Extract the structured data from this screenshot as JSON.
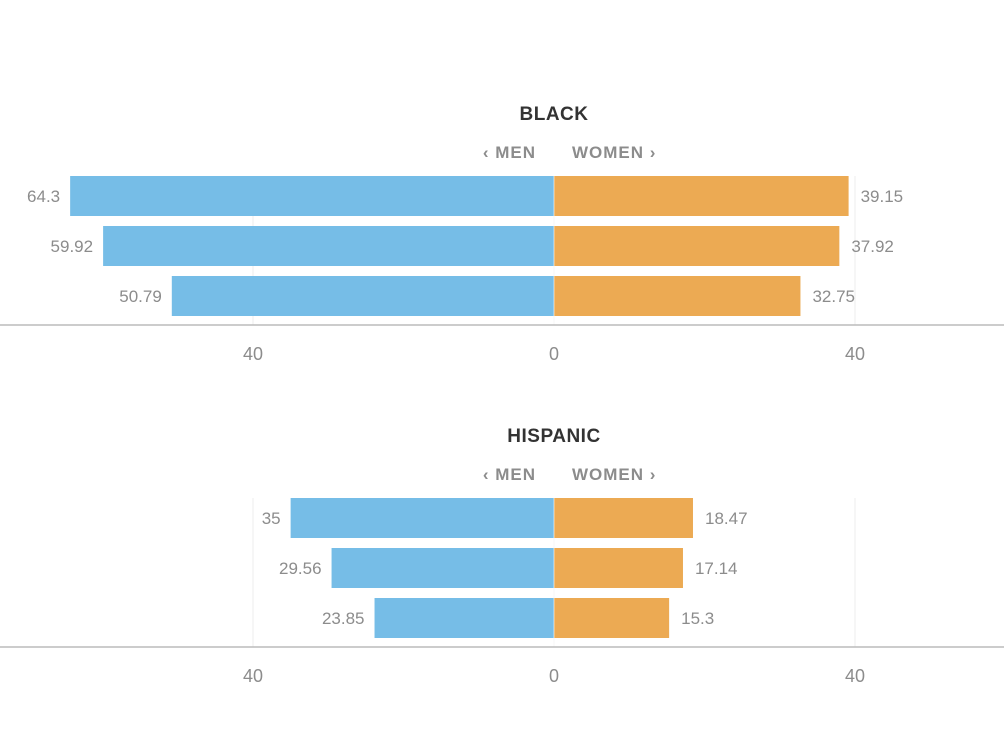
{
  "colors": {
    "men": "#76bde7",
    "women": "#ecaa53",
    "axis": "#bbbbbb",
    "grid": "#ececec",
    "text": "#8c8c8c",
    "title": "#333333"
  },
  "chart_data": [
    {
      "type": "bar",
      "title": "BLACK",
      "men_label": "‹ MEN",
      "women_label": "WOMEN ›",
      "series": [
        {
          "name": "MEN",
          "values": [
            64.3,
            59.92,
            50.79
          ]
        },
        {
          "name": "WOMEN",
          "values": [
            39.15,
            37.92,
            32.75
          ]
        }
      ],
      "xlim": [
        -66,
        66
      ],
      "ticks": [
        {
          "value": -40,
          "label": "40"
        },
        {
          "value": 0,
          "label": "0"
        },
        {
          "value": 40,
          "label": "40"
        }
      ],
      "grid": true
    },
    {
      "type": "bar",
      "title": "HISPANIC",
      "men_label": "‹ MEN",
      "women_label": "WOMEN ›",
      "series": [
        {
          "name": "MEN",
          "values": [
            35,
            29.56,
            23.85
          ]
        },
        {
          "name": "WOMEN",
          "values": [
            18.47,
            17.14,
            15.3
          ]
        }
      ],
      "xlim": [
        -66,
        66
      ],
      "ticks": [
        {
          "value": -40,
          "label": "40"
        },
        {
          "value": 0,
          "label": "0"
        },
        {
          "value": 40,
          "label": "40"
        }
      ],
      "grid": true
    }
  ]
}
